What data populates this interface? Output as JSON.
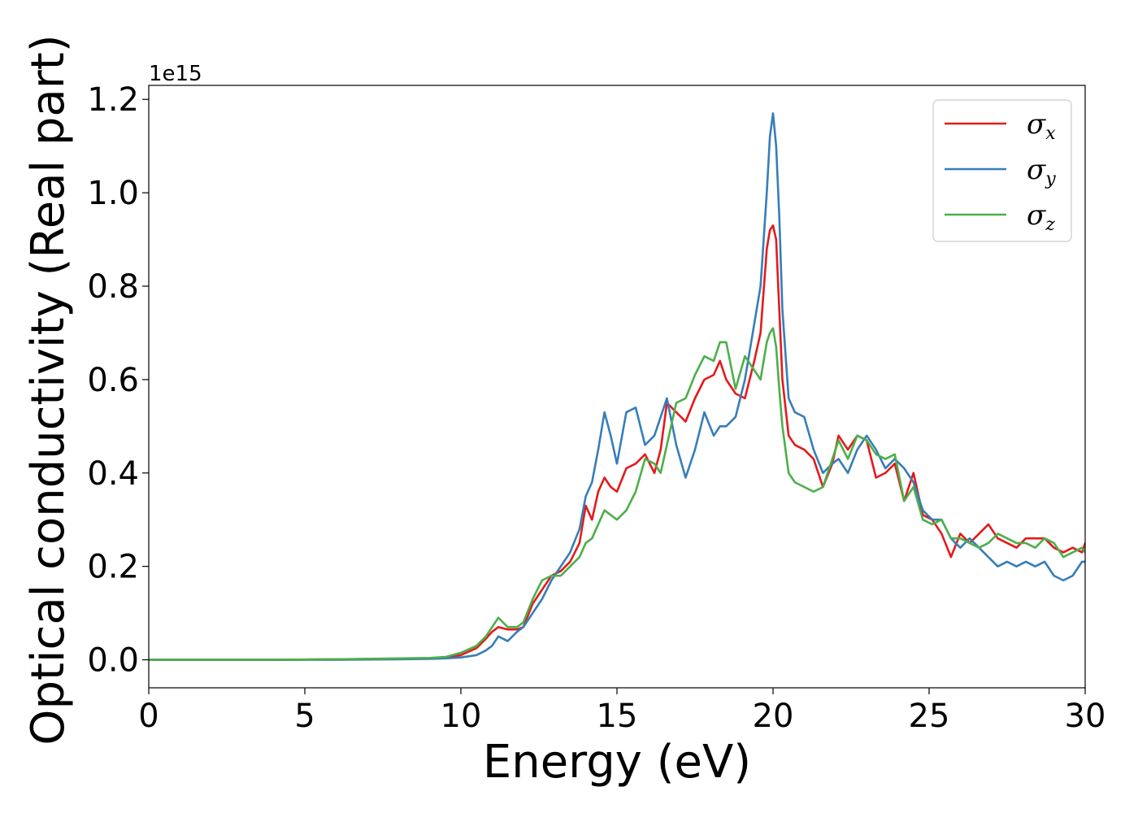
{
  "chart_data": {
    "type": "line",
    "xlabel": "Energy (eV)",
    "ylabel": "Optical conductivity (Real part)",
    "y_offset_text": "1e15",
    "xlim": [
      0,
      30
    ],
    "ylim": [
      -0.06,
      1.23
    ],
    "xticks": [
      0,
      5,
      10,
      15,
      20,
      25,
      30
    ],
    "xtick_labels": [
      "0",
      "5",
      "10",
      "15",
      "20",
      "25",
      "30"
    ],
    "yticks": [
      0.0,
      0.2,
      0.4,
      0.6,
      0.8,
      1.0,
      1.2
    ],
    "ytick_labels": [
      "0.0",
      "0.2",
      "0.4",
      "0.6",
      "0.8",
      "1.0",
      "1.2"
    ],
    "grid": false,
    "legend_position": "top-right",
    "series": [
      {
        "name": "σx",
        "legend_base": "σ",
        "legend_sub": "x",
        "color": "#e41a1c",
        "x": [
          0,
          2,
          4,
          6,
          8,
          9,
          9.5,
          10,
          10.5,
          10.8,
          11,
          11.2,
          11.5,
          11.8,
          12,
          12.3,
          12.6,
          12.9,
          13.2,
          13.5,
          13.8,
          14,
          14.2,
          14.4,
          14.6,
          14.8,
          15,
          15.3,
          15.6,
          15.9,
          16.2,
          16.4,
          16.6,
          16.9,
          17.2,
          17.5,
          17.8,
          18.1,
          18.3,
          18.5,
          18.8,
          19.1,
          19.4,
          19.6,
          19.8,
          19.9,
          20,
          20.1,
          20.2,
          20.3,
          20.5,
          20.7,
          21,
          21.3,
          21.6,
          21.9,
          22.1,
          22.4,
          22.7,
          23,
          23.3,
          23.6,
          23.9,
          24.2,
          24.5,
          24.8,
          25.1,
          25.4,
          25.7,
          26,
          26.3,
          26.6,
          26.9,
          27.2,
          27.5,
          27.8,
          28.1,
          28.4,
          28.7,
          29,
          29.3,
          29.6,
          29.9,
          30
        ],
        "y": [
          0,
          0,
          0,
          0.001,
          0.002,
          0.003,
          0.005,
          0.01,
          0.025,
          0.045,
          0.06,
          0.07,
          0.065,
          0.065,
          0.07,
          0.12,
          0.15,
          0.18,
          0.19,
          0.21,
          0.25,
          0.33,
          0.3,
          0.36,
          0.39,
          0.37,
          0.36,
          0.41,
          0.42,
          0.44,
          0.4,
          0.45,
          0.55,
          0.53,
          0.51,
          0.56,
          0.6,
          0.61,
          0.64,
          0.6,
          0.57,
          0.56,
          0.64,
          0.7,
          0.88,
          0.92,
          0.93,
          0.9,
          0.75,
          0.6,
          0.48,
          0.46,
          0.45,
          0.43,
          0.37,
          0.42,
          0.48,
          0.45,
          0.48,
          0.47,
          0.39,
          0.4,
          0.42,
          0.34,
          0.4,
          0.31,
          0.3,
          0.27,
          0.22,
          0.27,
          0.25,
          0.27,
          0.29,
          0.26,
          0.25,
          0.24,
          0.26,
          0.26,
          0.26,
          0.24,
          0.23,
          0.24,
          0.23,
          0.25
        ]
      },
      {
        "name": "σy",
        "legend_base": "σ",
        "legend_sub": "y",
        "color": "#377eb8",
        "x": [
          0,
          2,
          4,
          6,
          8,
          9,
          9.5,
          10,
          10.5,
          10.8,
          11,
          11.2,
          11.5,
          11.8,
          12,
          12.3,
          12.6,
          12.9,
          13.2,
          13.5,
          13.8,
          14,
          14.2,
          14.4,
          14.6,
          14.8,
          15,
          15.3,
          15.6,
          15.9,
          16.2,
          16.4,
          16.6,
          16.9,
          17.2,
          17.5,
          17.8,
          18.1,
          18.3,
          18.5,
          18.8,
          19.1,
          19.4,
          19.6,
          19.8,
          19.9,
          20,
          20.1,
          20.2,
          20.3,
          20.5,
          20.7,
          21,
          21.3,
          21.6,
          21.9,
          22.1,
          22.4,
          22.7,
          23,
          23.3,
          23.6,
          23.9,
          24.2,
          24.5,
          24.8,
          25.1,
          25.4,
          25.7,
          26,
          26.3,
          26.6,
          26.9,
          27.2,
          27.5,
          27.8,
          28.1,
          28.4,
          28.7,
          29,
          29.3,
          29.6,
          29.9,
          30
        ],
        "y": [
          0,
          0,
          0,
          0,
          0.001,
          0.002,
          0.003,
          0.005,
          0.01,
          0.02,
          0.03,
          0.05,
          0.04,
          0.06,
          0.07,
          0.1,
          0.13,
          0.17,
          0.2,
          0.23,
          0.28,
          0.35,
          0.38,
          0.45,
          0.53,
          0.48,
          0.42,
          0.53,
          0.54,
          0.46,
          0.48,
          0.52,
          0.56,
          0.46,
          0.39,
          0.45,
          0.53,
          0.48,
          0.5,
          0.5,
          0.52,
          0.6,
          0.72,
          0.8,
          1.0,
          1.12,
          1.17,
          1.1,
          0.95,
          0.75,
          0.56,
          0.53,
          0.52,
          0.45,
          0.4,
          0.42,
          0.43,
          0.4,
          0.45,
          0.48,
          0.45,
          0.41,
          0.43,
          0.41,
          0.38,
          0.32,
          0.3,
          0.3,
          0.26,
          0.24,
          0.26,
          0.24,
          0.22,
          0.2,
          0.21,
          0.2,
          0.21,
          0.2,
          0.21,
          0.18,
          0.17,
          0.18,
          0.21,
          0.21
        ]
      },
      {
        "name": "σz",
        "legend_base": "σ",
        "legend_sub": "z",
        "color": "#4daf4a",
        "x": [
          0,
          2,
          4,
          6,
          8,
          9,
          9.5,
          10,
          10.5,
          10.8,
          11,
          11.2,
          11.5,
          11.8,
          12,
          12.3,
          12.6,
          12.9,
          13.2,
          13.5,
          13.8,
          14,
          14.2,
          14.4,
          14.6,
          14.8,
          15,
          15.3,
          15.6,
          15.9,
          16.2,
          16.4,
          16.6,
          16.9,
          17.2,
          17.5,
          17.8,
          18.1,
          18.3,
          18.5,
          18.8,
          19.1,
          19.4,
          19.6,
          19.8,
          19.9,
          20,
          20.1,
          20.2,
          20.3,
          20.5,
          20.7,
          21,
          21.3,
          21.6,
          21.9,
          22.1,
          22.4,
          22.7,
          23,
          23.3,
          23.6,
          23.9,
          24.2,
          24.5,
          24.8,
          25.1,
          25.4,
          25.7,
          26,
          26.3,
          26.6,
          26.9,
          27.2,
          27.5,
          27.8,
          28.1,
          28.4,
          28.7,
          29,
          29.3,
          29.6,
          29.9,
          30
        ],
        "y": [
          0,
          0,
          0,
          0.001,
          0.003,
          0.004,
          0.006,
          0.015,
          0.03,
          0.05,
          0.07,
          0.09,
          0.07,
          0.07,
          0.08,
          0.13,
          0.17,
          0.18,
          0.18,
          0.2,
          0.22,
          0.25,
          0.26,
          0.29,
          0.32,
          0.31,
          0.3,
          0.32,
          0.36,
          0.43,
          0.42,
          0.4,
          0.46,
          0.55,
          0.56,
          0.61,
          0.65,
          0.64,
          0.68,
          0.68,
          0.58,
          0.65,
          0.62,
          0.6,
          0.68,
          0.7,
          0.71,
          0.67,
          0.58,
          0.5,
          0.4,
          0.38,
          0.37,
          0.36,
          0.37,
          0.43,
          0.47,
          0.43,
          0.48,
          0.47,
          0.44,
          0.43,
          0.44,
          0.34,
          0.37,
          0.3,
          0.29,
          0.3,
          0.26,
          0.26,
          0.25,
          0.24,
          0.25,
          0.27,
          0.26,
          0.25,
          0.25,
          0.24,
          0.26,
          0.25,
          0.22,
          0.23,
          0.24,
          0.23
        ]
      }
    ]
  }
}
